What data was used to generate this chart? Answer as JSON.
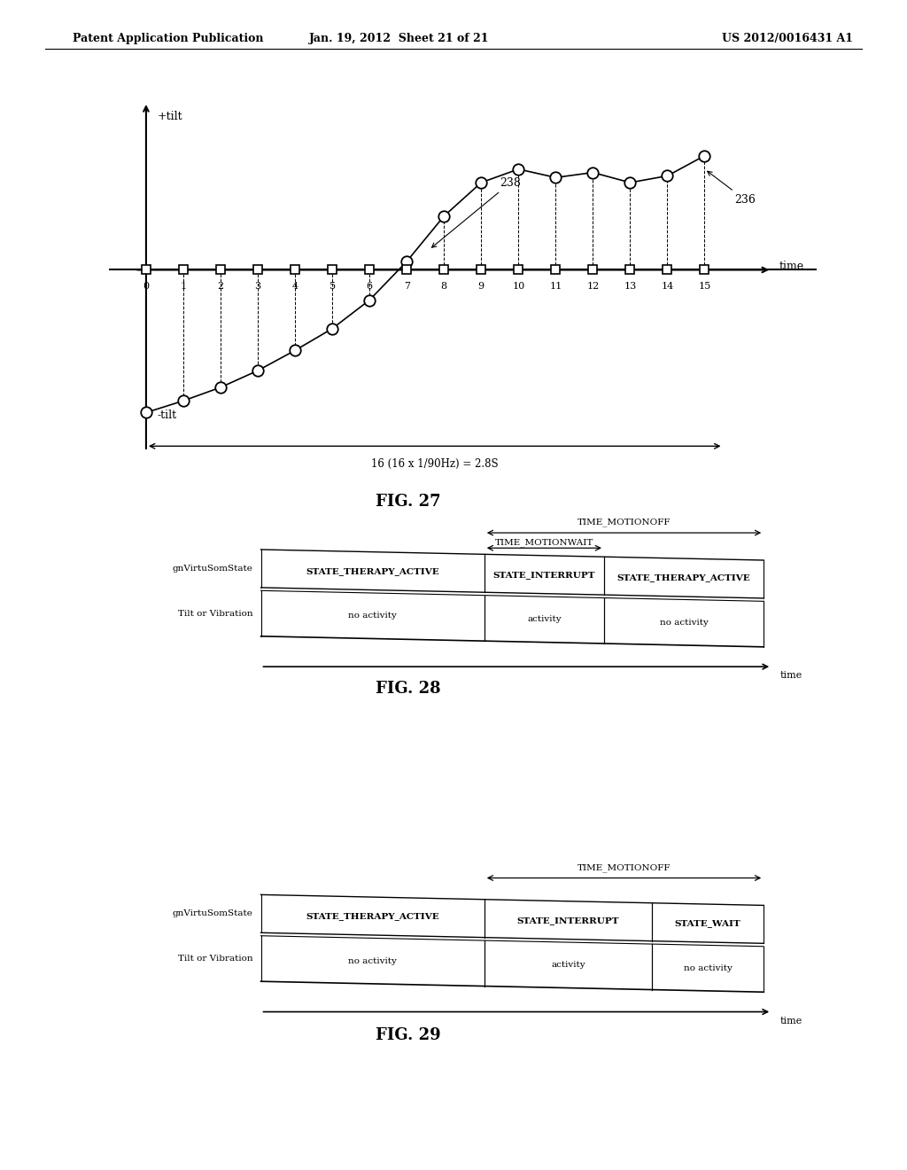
{
  "bg_color": "#ffffff",
  "header_left": "Patent Application Publication",
  "header_center": "Jan. 19, 2012  Sheet 21 of 21",
  "header_right": "US 2012/0016431 A1",
  "fig27": {
    "title": "FIG. 27",
    "circle_points_x": [
      0,
      1,
      2,
      3,
      4,
      5,
      6,
      7,
      8,
      9,
      10,
      11,
      12,
      13,
      14,
      15
    ],
    "circle_points_y": [
      -0.85,
      -0.78,
      -0.7,
      -0.6,
      -0.48,
      -0.35,
      -0.18,
      0.05,
      0.32,
      0.52,
      0.6,
      0.55,
      0.58,
      0.52,
      0.56,
      0.68
    ],
    "label_238": "238",
    "label_236": "236",
    "dimension_text": "16 (16 x 1/90Hz) = 2.8S"
  },
  "fig28": {
    "title": "FIG. 28",
    "time_motionoff": "TIME_MOTIONOFF",
    "time_motionwait": "TIME_MOTIONWAIT",
    "row1_label": "gnVirtuSomState",
    "row1_cells": [
      "STATE_THERAPY_ACTIVE",
      "STATE_INTERRUPT",
      "STATE_THERAPY_ACTIVE"
    ],
    "row2_label": "Tilt or Vibration",
    "row2_cells": [
      "no activity",
      "activity",
      "no activity"
    ],
    "col_starts": [
      0.27,
      0.55,
      0.7
    ],
    "col_ends": [
      0.55,
      0.7,
      0.9
    ]
  },
  "fig29": {
    "title": "FIG. 29",
    "time_motionoff": "TIME_MOTIONOFF",
    "row1_label": "gnVirtuSomState",
    "row1_cells": [
      "STATE_THERAPY_ACTIVE",
      "STATE_INTERRUPT",
      "STATE_WAIT"
    ],
    "row2_label": "Tilt or Vibration",
    "row2_cells": [
      "no activity",
      "activity",
      "no activity"
    ],
    "col_starts": [
      0.27,
      0.55,
      0.76
    ],
    "col_ends": [
      0.55,
      0.76,
      0.9
    ]
  }
}
